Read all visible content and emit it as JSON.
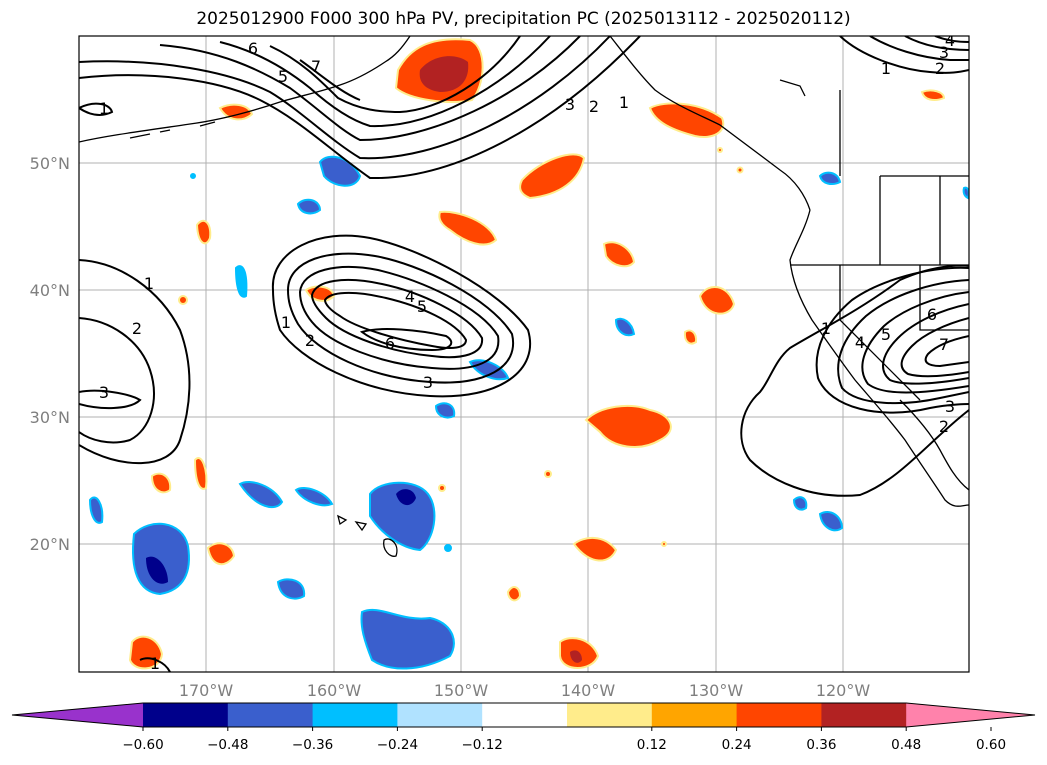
{
  "title": "2025012900 F000 300 hPa PV, precipitation PC (2025013112 - 2025020112)",
  "lat_labels": [
    "50°N",
    "40°N",
    "30°N",
    "20°N"
  ],
  "lon_labels": [
    "170°W",
    "160°W",
    "150°W",
    "140°W",
    "130°W",
    "120°W"
  ],
  "colorbar": {
    "ticks": [
      "−0.60",
      "−0.48",
      "−0.36",
      "−0.24",
      "−0.12",
      "0.12",
      "0.24",
      "0.36",
      "0.48",
      "0.60"
    ],
    "colors": [
      "#9932cc",
      "#00008b",
      "#3a5fcd",
      "#00bfff",
      "#b0e2ff",
      "#ffffff",
      "#ffec8b",
      "#ffa500",
      "#ff4500",
      "#b22222",
      "#ff82ab"
    ]
  },
  "contour_labels": {
    "west_trough": [
      "1",
      "2",
      "3"
    ],
    "central_low": [
      "1",
      "2",
      "3",
      "4",
      "5",
      "6"
    ],
    "gulf_alaska": [
      "1",
      "2",
      "3",
      "5",
      "6",
      "7"
    ],
    "northwest": [
      "1"
    ],
    "northeast": [
      "1",
      "2",
      "3",
      "4"
    ],
    "california_low": [
      "1",
      "3",
      "4",
      "5",
      "6",
      "7",
      "2"
    ],
    "southwest": [
      "1"
    ]
  }
}
